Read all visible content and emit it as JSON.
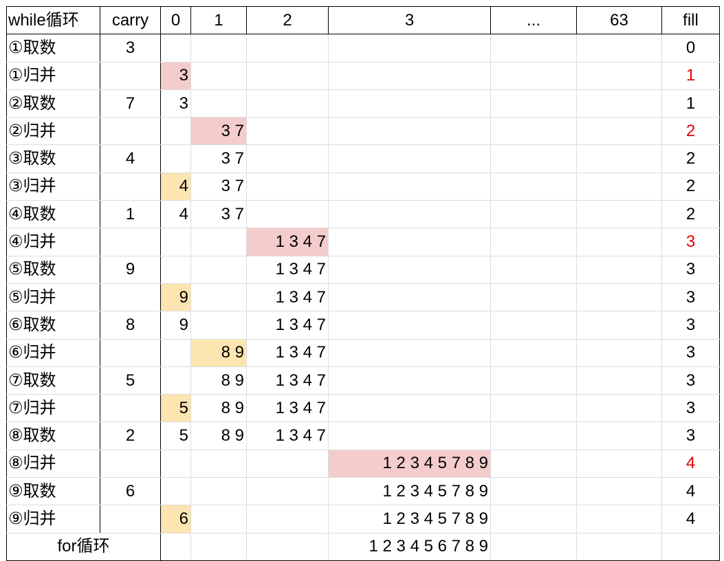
{
  "header": [
    "while循环",
    "carry",
    "0",
    "1",
    "2",
    "3",
    "...",
    "63",
    "fill"
  ],
  "rows": [
    {
      "label": "①取数",
      "carry": "3",
      "c0": "",
      "c1": "",
      "c2": "",
      "c3": "",
      "fill": "0",
      "hl_col": null,
      "hl_color": null,
      "fill_red": false
    },
    {
      "label": "①归并",
      "carry": "",
      "c0": "3",
      "c1": "",
      "c2": "",
      "c3": "",
      "fill": "1",
      "hl_col": "c0",
      "hl_color": "pink",
      "fill_red": true
    },
    {
      "label": "②取数",
      "carry": "7",
      "c0": "3",
      "c1": "",
      "c2": "",
      "c3": "",
      "fill": "1",
      "hl_col": null,
      "hl_color": null,
      "fill_red": false
    },
    {
      "label": "②归并",
      "carry": "",
      "c0": "",
      "c1": "3 7",
      "c2": "",
      "c3": "",
      "fill": "2",
      "hl_col": "c1",
      "hl_color": "pink",
      "fill_red": true
    },
    {
      "label": "③取数",
      "carry": "4",
      "c0": "",
      "c1": "3 7",
      "c2": "",
      "c3": "",
      "fill": "2",
      "hl_col": null,
      "hl_color": null,
      "fill_red": false
    },
    {
      "label": "③归并",
      "carry": "",
      "c0": "4",
      "c1": "3 7",
      "c2": "",
      "c3": "",
      "fill": "2",
      "hl_col": "c0",
      "hl_color": "yellow",
      "fill_red": false
    },
    {
      "label": "④取数",
      "carry": "1",
      "c0": "4",
      "c1": "3 7",
      "c2": "",
      "c3": "",
      "fill": "2",
      "hl_col": null,
      "hl_color": null,
      "fill_red": false
    },
    {
      "label": "④归并",
      "carry": "",
      "c0": "",
      "c1": "",
      "c2": "1 3 4 7",
      "c3": "",
      "fill": "3",
      "hl_col": "c2",
      "hl_color": "pink",
      "fill_red": true
    },
    {
      "label": "⑤取数",
      "carry": "9",
      "c0": "",
      "c1": "",
      "c2": "1 3 4 7",
      "c3": "",
      "fill": "3",
      "hl_col": null,
      "hl_color": null,
      "fill_red": false
    },
    {
      "label": "⑤归并",
      "carry": "",
      "c0": "9",
      "c1": "",
      "c2": "1 3 4 7",
      "c3": "",
      "fill": "3",
      "hl_col": "c0",
      "hl_color": "yellow",
      "fill_red": false
    },
    {
      "label": "⑥取数",
      "carry": "8",
      "c0": "9",
      "c1": "",
      "c2": "1 3 4 7",
      "c3": "",
      "fill": "3",
      "hl_col": null,
      "hl_color": null,
      "fill_red": false
    },
    {
      "label": "⑥归并",
      "carry": "",
      "c0": "",
      "c1": "8 9",
      "c2": "1 3 4 7",
      "c3": "",
      "fill": "3",
      "hl_col": "c1",
      "hl_color": "yellow",
      "fill_red": false
    },
    {
      "label": "⑦取数",
      "carry": "5",
      "c0": "",
      "c1": "8 9",
      "c2": "1 3 4 7",
      "c3": "",
      "fill": "3",
      "hl_col": null,
      "hl_color": null,
      "fill_red": false
    },
    {
      "label": "⑦归并",
      "carry": "",
      "c0": "5",
      "c1": "8 9",
      "c2": "1 3 4 7",
      "c3": "",
      "fill": "3",
      "hl_col": "c0",
      "hl_color": "yellow",
      "fill_red": false
    },
    {
      "label": "⑧取数",
      "carry": "2",
      "c0": "5",
      "c1": "8 9",
      "c2": "1 3 4 7",
      "c3": "",
      "fill": "3",
      "hl_col": null,
      "hl_color": null,
      "fill_red": false
    },
    {
      "label": "⑧归并",
      "carry": "",
      "c0": "",
      "c1": "",
      "c2": "",
      "c3": "1 2 3 4 5 7 8 9",
      "fill": "4",
      "hl_col": "c3",
      "hl_color": "pink",
      "fill_red": true
    },
    {
      "label": "⑨取数",
      "carry": "6",
      "c0": "",
      "c1": "",
      "c2": "",
      "c3": "1 2 3 4 5 7 8 9",
      "fill": "4",
      "hl_col": null,
      "hl_color": null,
      "fill_red": false
    },
    {
      "label": "⑨归并",
      "carry": "",
      "c0": "6",
      "c1": "",
      "c2": "",
      "c3": "1 2 3 4 5 7 8 9",
      "fill": "4",
      "hl_col": "c0",
      "hl_color": "yellow",
      "fill_red": false
    }
  ],
  "footer": {
    "label": "for循环",
    "result": "1 2 3 4 5 6 7 8 9"
  },
  "colors": {
    "merge_new_bucket": "#f4cccc",
    "merge_existing_bucket": "#fce5b0",
    "fill_changed": "#e60000"
  }
}
